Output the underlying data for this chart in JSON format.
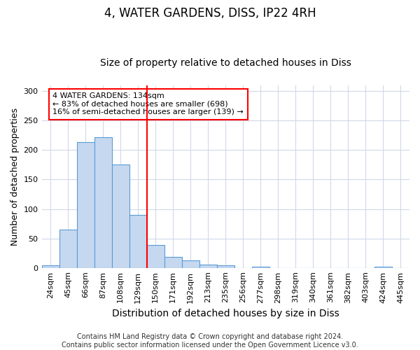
{
  "title": "4, WATER GARDENS, DISS, IP22 4RH",
  "subtitle": "Size of property relative to detached houses in Diss",
  "xlabel": "Distribution of detached houses by size in Diss",
  "ylabel": "Number of detached properties",
  "categories": [
    "24sqm",
    "45sqm",
    "66sqm",
    "87sqm",
    "108sqm",
    "129sqm",
    "150sqm",
    "171sqm",
    "192sqm",
    "213sqm",
    "235sqm",
    "256sqm",
    "277sqm",
    "298sqm",
    "319sqm",
    "340sqm",
    "361sqm",
    "382sqm",
    "403sqm",
    "424sqm",
    "445sqm"
  ],
  "values": [
    4,
    65,
    213,
    222,
    175,
    90,
    39,
    19,
    13,
    5,
    4,
    0,
    2,
    0,
    0,
    0,
    0,
    0,
    0,
    2,
    0
  ],
  "bar_color": "#C5D8F0",
  "bar_edge_color": "#5B9BD5",
  "vline_x_index": 5.5,
  "vline_color": "red",
  "annotation_text": "4 WATER GARDENS: 134sqm\n← 83% of detached houses are smaller (698)\n16% of semi-detached houses are larger (139) →",
  "annotation_box_color": "white",
  "annotation_box_edge_color": "red",
  "ylim": [
    0,
    310
  ],
  "yticks": [
    0,
    50,
    100,
    150,
    200,
    250,
    300
  ],
  "footer": "Contains HM Land Registry data © Crown copyright and database right 2024.\nContains public sector information licensed under the Open Government Licence v3.0.",
  "background_color": "#FFFFFF",
  "plot_bg_color": "#FFFFFF",
  "grid_color": "#D0D8E8",
  "title_fontsize": 12,
  "subtitle_fontsize": 10,
  "xlabel_fontsize": 10,
  "ylabel_fontsize": 9,
  "tick_fontsize": 8,
  "footer_fontsize": 7,
  "ann_fontsize": 8
}
